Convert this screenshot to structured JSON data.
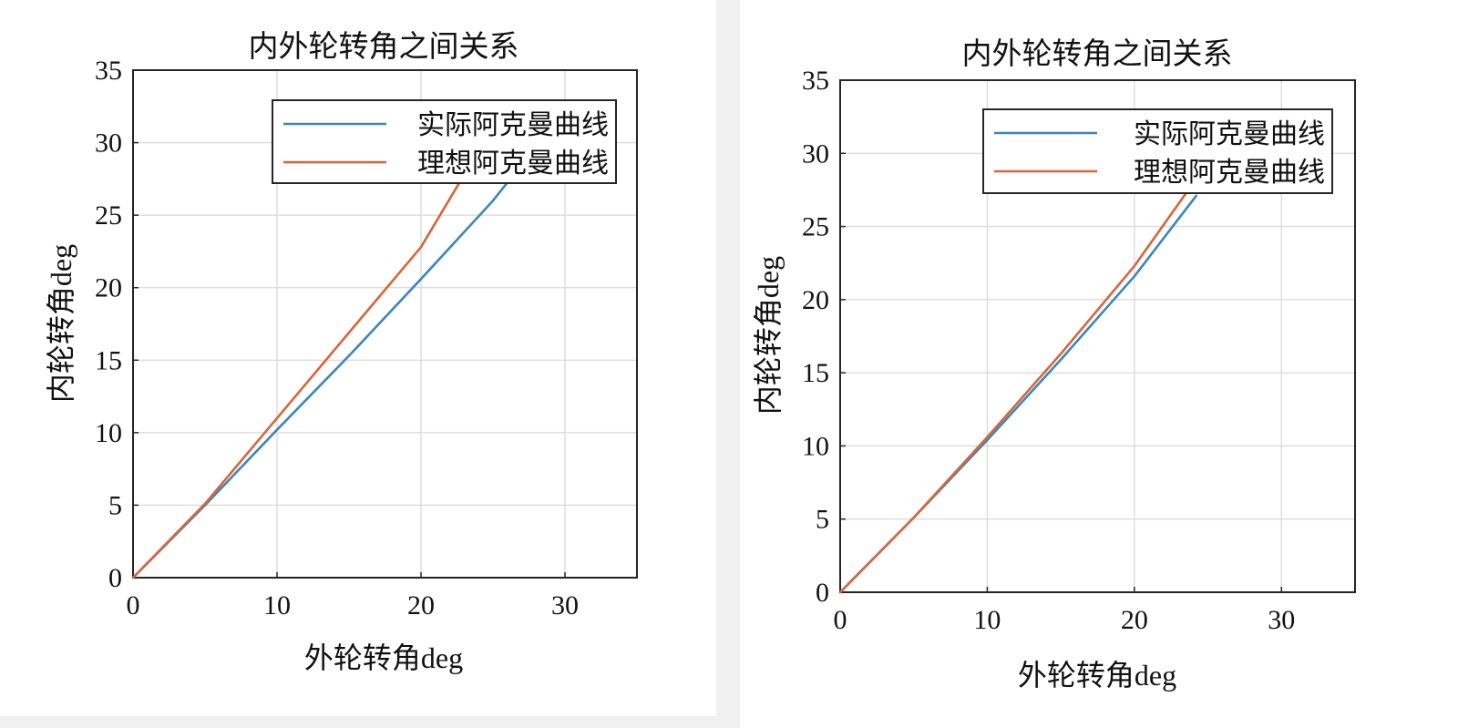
{
  "chart_data": [
    {
      "type": "line",
      "title": "内外轮转角之间关系",
      "xlabel": "外轮转角deg",
      "ylabel": "内轮转角deg",
      "xlim": [
        0,
        35
      ],
      "ylim": [
        0,
        35
      ],
      "xticks": [
        0,
        10,
        20,
        30
      ],
      "yticks": [
        0,
        5,
        10,
        15,
        20,
        25,
        30,
        35
      ],
      "grid": true,
      "legend_position": "top-right",
      "series": [
        {
          "name": "实际阿克曼曲线",
          "color": "#3a86c0",
          "x": [
            0,
            5,
            10,
            15,
            20,
            25,
            26.6
          ],
          "y": [
            0,
            5.0,
            10.2,
            15.3,
            20.6,
            26.0,
            28.0
          ]
        },
        {
          "name": "理想阿克曼曲线",
          "color": "#d9653a",
          "x": [
            0,
            5,
            10,
            15,
            20,
            23.0
          ],
          "y": [
            0,
            5.1,
            11.0,
            16.9,
            22.8,
            27.8
          ]
        }
      ]
    },
    {
      "type": "line",
      "title": "内外轮转角之间关系",
      "xlabel": "外轮转角deg",
      "ylabel": "内轮转角deg",
      "xlim": [
        0,
        35
      ],
      "ylim": [
        0,
        35
      ],
      "xticks": [
        0,
        10,
        20,
        30
      ],
      "yticks": [
        0,
        5,
        10,
        15,
        20,
        25,
        30,
        35
      ],
      "grid": true,
      "legend_position": "top-right",
      "series": [
        {
          "name": "实际阿克曼曲线",
          "color": "#3a86c0",
          "x": [
            0,
            5,
            10,
            15,
            20,
            24.2
          ],
          "y": [
            0,
            5.1,
            10.4,
            15.9,
            21.6,
            27.1
          ]
        },
        {
          "name": "理想阿克曼曲线",
          "color": "#d9653a",
          "x": [
            0,
            5,
            10,
            15,
            20,
            23.6
          ],
          "y": [
            0,
            5.1,
            10.6,
            16.3,
            22.3,
            27.4
          ]
        }
      ]
    }
  ]
}
